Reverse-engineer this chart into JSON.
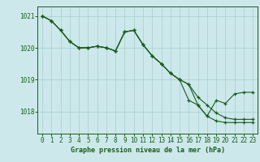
{
  "title": "Graphe pression niveau de la mer (hPa)",
  "background_color": "#cce8eb",
  "plot_color": "#1a5c1a",
  "grid_color": "#a8cdd0",
  "xlim": [
    -0.5,
    23.5
  ],
  "ylim": [
    1017.3,
    1021.3
  ],
  "yticks": [
    1018,
    1019,
    1020,
    1021
  ],
  "xticks": [
    0,
    1,
    2,
    3,
    4,
    5,
    6,
    7,
    8,
    9,
    10,
    11,
    12,
    13,
    14,
    15,
    16,
    17,
    18,
    19,
    20,
    21,
    22,
    23
  ],
  "line1_x": [
    0,
    1,
    2,
    3,
    4,
    5,
    6,
    7,
    8,
    9,
    10,
    11,
    12,
    13,
    14,
    15,
    16,
    17,
    18,
    19,
    20,
    21,
    22,
    23
  ],
  "line1_y": [
    1021.0,
    1020.85,
    1020.55,
    1020.2,
    1020.0,
    1020.0,
    1020.05,
    1020.0,
    1019.9,
    1020.5,
    1020.55,
    1020.1,
    1019.75,
    1019.5,
    1019.2,
    1019.0,
    1018.85,
    1018.45,
    1018.2,
    1017.95,
    1017.8,
    1017.75,
    1017.75,
    1017.75
  ],
  "line2_x": [
    0,
    1,
    2,
    3,
    4,
    5,
    6,
    7,
    8,
    9,
    10,
    11,
    12,
    13,
    14,
    15,
    16,
    17,
    18,
    19,
    20,
    21,
    22,
    23
  ],
  "line2_y": [
    1021.0,
    1020.85,
    1020.55,
    1020.2,
    1020.0,
    1020.0,
    1020.05,
    1020.0,
    1019.9,
    1020.5,
    1020.55,
    1020.1,
    1019.75,
    1019.5,
    1019.2,
    1019.0,
    1018.35,
    1018.2,
    1017.85,
    1018.35,
    1018.25,
    1018.55,
    1018.6,
    1018.6
  ],
  "line3_x": [
    0,
    1,
    2,
    3,
    4,
    5,
    6,
    7,
    8,
    9,
    10,
    11,
    12,
    13,
    14,
    15,
    16,
    17,
    18,
    19,
    20,
    21,
    22,
    23
  ],
  "line3_y": [
    1021.0,
    1020.85,
    1020.55,
    1020.2,
    1020.0,
    1020.0,
    1020.05,
    1020.0,
    1019.9,
    1020.5,
    1020.55,
    1020.1,
    1019.75,
    1019.5,
    1019.2,
    1019.0,
    1018.85,
    1018.2,
    1017.85,
    1017.7,
    1017.65,
    1017.65,
    1017.65,
    1017.65
  ],
  "tick_fontsize": 5.5,
  "label_fontsize": 6.0
}
